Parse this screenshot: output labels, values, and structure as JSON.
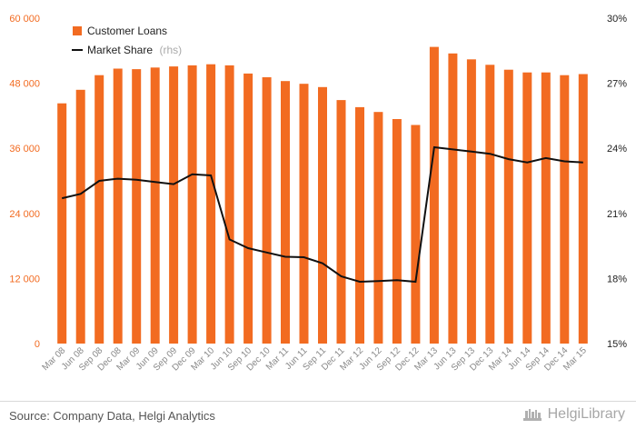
{
  "source_text": "Source: Company Data, Helgi Analytics",
  "brand": "HelgiLibrary",
  "colors": {
    "bars": "#f26b21",
    "line": "#111111",
    "left_axis": "#f26b21",
    "right_axis": "#222222",
    "x_axis": "#888888"
  },
  "chart_data": {
    "type": "bar",
    "categories": [
      "Mar 08",
      "Jun 08",
      "Sep 08",
      "Dec 08",
      "Mar 09",
      "Jun 09",
      "Sep 09",
      "Dec 09",
      "Mar 10",
      "Jun 10",
      "Sep 10",
      "Dec 10",
      "Mar 11",
      "Jun 11",
      "Sep 11",
      "Dec 11",
      "Mar 12",
      "Jun 12",
      "Sep 12",
      "Dec 12",
      "Mar 13",
      "Jun 13",
      "Sep 13",
      "Dec 13",
      "Mar 14",
      "Jun 14",
      "Sep 14",
      "Dec 14",
      "Mar 15"
    ],
    "series": [
      {
        "name": "Customer Loans",
        "type": "bar",
        "axis": "left",
        "values": [
          44300,
          46800,
          49500,
          50700,
          50600,
          50900,
          51100,
          51300,
          51500,
          51300,
          49800,
          49100,
          48400,
          47900,
          47300,
          44900,
          43600,
          42700,
          41400,
          40300,
          54700,
          53500,
          52400,
          51400,
          50500,
          50000,
          50000,
          49500,
          49700
        ]
      },
      {
        "name": "Market Share",
        "name_suffix": "(rhs)",
        "type": "line",
        "axis": "right",
        "values": [
          21.7,
          21.9,
          22.5,
          22.6,
          22.55,
          22.45,
          22.35,
          22.8,
          22.75,
          19.8,
          19.4,
          19.2,
          19.0,
          18.98,
          18.7,
          18.1,
          17.85,
          17.88,
          17.92,
          17.85,
          24.05,
          23.95,
          23.85,
          23.75,
          23.5,
          23.35,
          23.55,
          23.4,
          23.35
        ]
      }
    ],
    "y_left": {
      "min": 0,
      "max": 60000,
      "ticks": [
        "0",
        "12 000",
        "24 000",
        "36 000",
        "48 000",
        "60 000"
      ]
    },
    "y_right": {
      "min": 15,
      "max": 30,
      "ticks": [
        "15%",
        "18%",
        "21%",
        "24%",
        "27%",
        "30%"
      ]
    },
    "legend_position": "top-left",
    "grid": false
  }
}
